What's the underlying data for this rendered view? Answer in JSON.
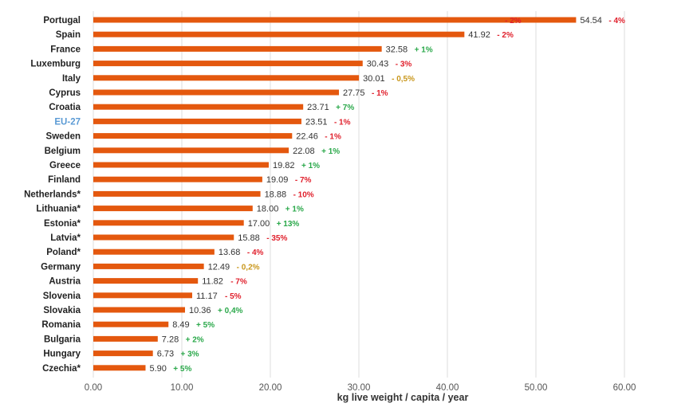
{
  "chart_data": {
    "type": "bar",
    "orientation": "horizontal",
    "title": "",
    "xlabel": "kg live weight / capita / year",
    "ylabel": "",
    "xlim": [
      0,
      60
    ],
    "xticks": [
      "0.00",
      "10.00",
      "20.00",
      "30.00",
      "40.00",
      "50.00",
      "60.00"
    ],
    "grid": true,
    "highlight_category": "EU-27",
    "colors": {
      "bar": "#e4580e",
      "negative": "#e0202c",
      "positive": "#2aa84a",
      "neutral": "#c9971c",
      "highlight_label": "#5b9bd5"
    },
    "categories": [
      "Portugal",
      "Spain",
      "France",
      "Luxemburg",
      "Italy",
      "Cyprus",
      "Croatia",
      "EU-27",
      "Sweden",
      "Belgium",
      "Greece",
      "Finland",
      "Netherlands*",
      "Lithuania*",
      "Estonia*",
      "Latvia*",
      "Poland*",
      "Germany",
      "Austria",
      "Slovenia",
      "Slovakia",
      "Romania",
      "Bulgaria",
      "Hungary",
      "Czechia*"
    ],
    "values": [
      54.54,
      41.92,
      32.58,
      30.43,
      30.01,
      27.75,
      23.71,
      23.51,
      22.46,
      22.08,
      19.82,
      19.09,
      18.88,
      18.0,
      17.0,
      15.88,
      13.68,
      12.49,
      11.82,
      11.17,
      10.36,
      8.49,
      7.28,
      6.73,
      5.9
    ],
    "value_labels": [
      "54.54",
      "41.92",
      "32.58",
      "30.43",
      "30.01",
      "27.75",
      "23.71",
      "23.51",
      "22.46",
      "22.08",
      "19.82",
      "19.09",
      "18.88",
      "18.00",
      "17.00",
      "15.88",
      "13.68",
      "12.49",
      "11.82",
      "11.17",
      "10.36",
      "8.49",
      "7.28",
      "6.73",
      "5.90"
    ],
    "changes": [
      "- 4%",
      "- 2%",
      "+ 1%",
      "- 3%",
      "- 0,5%",
      "- 1%",
      "+ 7%",
      "- 1%",
      "- 1%",
      "+ 1%",
      "+ 1%",
      "- 7%",
      "- 10%",
      "+ 1%",
      "+ 13%",
      "- 35%",
      "- 4%",
      "- 0,2%",
      "- 7%",
      "- 5%",
      "+ 0,4%",
      "+ 5%",
      "+ 2%",
      "+ 3%",
      "+ 5%"
    ],
    "change_types": [
      "negative",
      "negative",
      "positive",
      "negative",
      "neutral",
      "negative",
      "positive",
      "negative",
      "negative",
      "positive",
      "positive",
      "negative",
      "negative",
      "positive",
      "positive",
      "negative",
      "negative",
      "neutral",
      "negative",
      "negative",
      "positive",
      "positive",
      "positive",
      "positive",
      "positive"
    ],
    "annotations": [
      {
        "text": "- 2%",
        "type": "negative",
        "row": 0,
        "at_value": 46.5
      }
    ]
  }
}
